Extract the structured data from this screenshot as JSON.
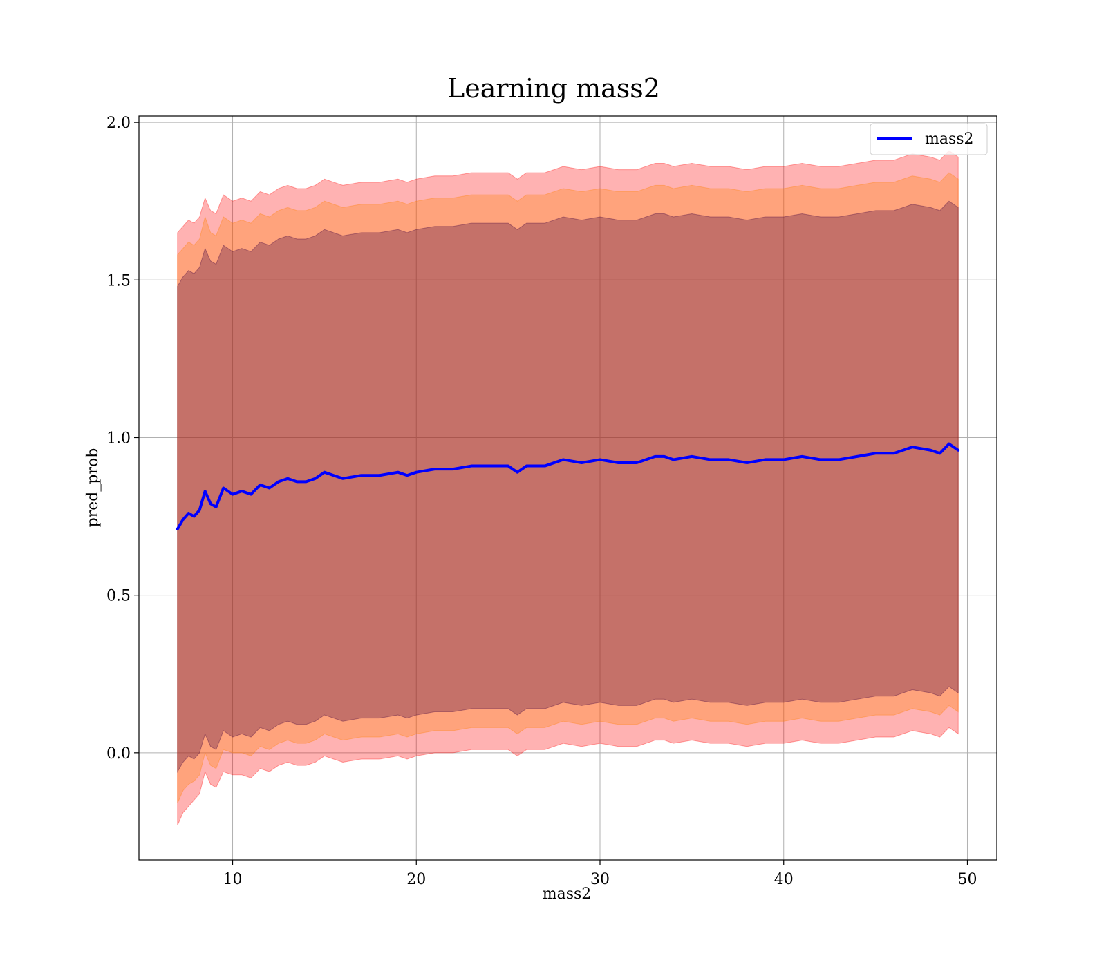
{
  "chart_data": {
    "type": "line",
    "title": "Learning mass2",
    "xlabel": "mass2",
    "ylabel": "pred_prob",
    "xlim": [
      4.9,
      51.6
    ],
    "ylim": [
      -0.34,
      2.02
    ],
    "x_ticks": [
      10,
      20,
      30,
      40,
      50
    ],
    "y_ticks": [
      0.0,
      0.5,
      1.0,
      1.5,
      2.0
    ],
    "x_tick_labels": [
      "10",
      "20",
      "30",
      "40",
      "50"
    ],
    "y_tick_labels": [
      "0.0",
      "0.5",
      "1.0",
      "1.5",
      "2.0"
    ],
    "grid": true,
    "legend": {
      "position": "top-right",
      "entries": [
        "mass2"
      ]
    },
    "series": [
      {
        "name": "mass2",
        "color": "#0000ff",
        "x": [
          7.0,
          7.3,
          7.6,
          7.9,
          8.2,
          8.5,
          8.8,
          9.1,
          9.5,
          10.0,
          10.5,
          11.0,
          11.5,
          12.0,
          12.5,
          13.0,
          13.5,
          14.0,
          14.5,
          15.0,
          15.5,
          16.0,
          17.0,
          18.0,
          19.0,
          19.5,
          20.0,
          21.0,
          22.0,
          23.0,
          24.0,
          25.0,
          25.5,
          26.0,
          27.0,
          28.0,
          29.0,
          30.0,
          31.0,
          32.0,
          33.0,
          33.5,
          34.0,
          35.0,
          36.0,
          37.0,
          38.0,
          39.0,
          40.0,
          41.0,
          42.0,
          43.0,
          44.0,
          45.0,
          46.0,
          46.5,
          47.0,
          48.0,
          48.5,
          49.0,
          49.5
        ],
        "mean": [
          0.71,
          0.74,
          0.76,
          0.75,
          0.77,
          0.83,
          0.79,
          0.78,
          0.84,
          0.82,
          0.83,
          0.82,
          0.85,
          0.84,
          0.86,
          0.87,
          0.86,
          0.86,
          0.87,
          0.89,
          0.88,
          0.87,
          0.88,
          0.88,
          0.89,
          0.88,
          0.89,
          0.9,
          0.9,
          0.91,
          0.91,
          0.91,
          0.89,
          0.91,
          0.91,
          0.93,
          0.92,
          0.93,
          0.92,
          0.92,
          0.94,
          0.94,
          0.93,
          0.94,
          0.93,
          0.93,
          0.92,
          0.93,
          0.93,
          0.94,
          0.93,
          0.93,
          0.94,
          0.95,
          0.95,
          0.96,
          0.97,
          0.96,
          0.95,
          0.98,
          0.96
        ],
        "bands": [
          {
            "color": "#ff0000",
            "opacity": 0.3,
            "lower": [
              -0.23,
              -0.19,
              -0.17,
              -0.15,
              -0.13,
              -0.06,
              -0.1,
              -0.11,
              -0.06,
              -0.07,
              -0.07,
              -0.08,
              -0.05,
              -0.06,
              -0.04,
              -0.03,
              -0.04,
              -0.04,
              -0.03,
              -0.01,
              -0.02,
              -0.03,
              -0.02,
              -0.02,
              -0.01,
              -0.02,
              -0.01,
              0.0,
              0.0,
              0.01,
              0.01,
              0.01,
              -0.01,
              0.01,
              0.01,
              0.03,
              0.02,
              0.03,
              0.02,
              0.02,
              0.04,
              0.04,
              0.03,
              0.04,
              0.03,
              0.03,
              0.02,
              0.03,
              0.03,
              0.04,
              0.03,
              0.03,
              0.04,
              0.05,
              0.05,
              0.06,
              0.07,
              0.06,
              0.05,
              0.08,
              0.06
            ],
            "upper": [
              1.65,
              1.67,
              1.69,
              1.68,
              1.7,
              1.76,
              1.72,
              1.71,
              1.77,
              1.75,
              1.76,
              1.75,
              1.78,
              1.77,
              1.79,
              1.8,
              1.79,
              1.79,
              1.8,
              1.82,
              1.81,
              1.8,
              1.81,
              1.81,
              1.82,
              1.81,
              1.82,
              1.83,
              1.83,
              1.84,
              1.84,
              1.84,
              1.82,
              1.84,
              1.84,
              1.86,
              1.85,
              1.86,
              1.85,
              1.85,
              1.87,
              1.87,
              1.86,
              1.87,
              1.86,
              1.86,
              1.85,
              1.86,
              1.86,
              1.87,
              1.86,
              1.86,
              1.87,
              1.88,
              1.88,
              1.89,
              1.9,
              1.89,
              1.88,
              1.91,
              1.89
            ]
          },
          {
            "color": "#ff8000",
            "opacity": 0.3,
            "lower": [
              -0.16,
              -0.12,
              -0.1,
              -0.09,
              -0.07,
              0.0,
              -0.04,
              -0.05,
              0.01,
              0.0,
              0.0,
              -0.01,
              0.02,
              0.01,
              0.03,
              0.04,
              0.03,
              0.03,
              0.04,
              0.06,
              0.05,
              0.04,
              0.05,
              0.05,
              0.06,
              0.05,
              0.06,
              0.07,
              0.07,
              0.08,
              0.08,
              0.08,
              0.06,
              0.08,
              0.08,
              0.1,
              0.09,
              0.1,
              0.09,
              0.09,
              0.11,
              0.11,
              0.1,
              0.11,
              0.1,
              0.1,
              0.09,
              0.1,
              0.1,
              0.11,
              0.1,
              0.1,
              0.11,
              0.12,
              0.12,
              0.13,
              0.14,
              0.13,
              0.12,
              0.15,
              0.13
            ],
            "upper": [
              1.58,
              1.6,
              1.62,
              1.61,
              1.63,
              1.7,
              1.65,
              1.64,
              1.7,
              1.68,
              1.69,
              1.68,
              1.71,
              1.7,
              1.72,
              1.73,
              1.72,
              1.72,
              1.73,
              1.75,
              1.74,
              1.73,
              1.74,
              1.74,
              1.75,
              1.74,
              1.75,
              1.76,
              1.76,
              1.77,
              1.77,
              1.77,
              1.75,
              1.77,
              1.77,
              1.79,
              1.78,
              1.79,
              1.78,
              1.78,
              1.8,
              1.8,
              1.79,
              1.8,
              1.79,
              1.79,
              1.78,
              1.79,
              1.79,
              1.8,
              1.79,
              1.79,
              1.8,
              1.81,
              1.81,
              1.82,
              1.83,
              1.82,
              1.81,
              1.84,
              1.82
            ]
          },
          {
            "color": "#400040",
            "opacity": 0.3,
            "lower": [
              -0.06,
              -0.03,
              -0.01,
              -0.02,
              0.0,
              0.06,
              0.02,
              0.01,
              0.07,
              0.05,
              0.06,
              0.05,
              0.08,
              0.07,
              0.09,
              0.1,
              0.09,
              0.09,
              0.1,
              0.12,
              0.11,
              0.1,
              0.11,
              0.11,
              0.12,
              0.11,
              0.12,
              0.13,
              0.13,
              0.14,
              0.14,
              0.14,
              0.12,
              0.14,
              0.14,
              0.16,
              0.15,
              0.16,
              0.15,
              0.15,
              0.17,
              0.17,
              0.16,
              0.17,
              0.16,
              0.16,
              0.15,
              0.16,
              0.16,
              0.17,
              0.16,
              0.16,
              0.17,
              0.18,
              0.18,
              0.19,
              0.2,
              0.19,
              0.18,
              0.21,
              0.19
            ],
            "upper": [
              1.48,
              1.51,
              1.53,
              1.52,
              1.54,
              1.6,
              1.56,
              1.55,
              1.61,
              1.59,
              1.6,
              1.59,
              1.62,
              1.61,
              1.63,
              1.64,
              1.63,
              1.63,
              1.64,
              1.66,
              1.65,
              1.64,
              1.65,
              1.65,
              1.66,
              1.65,
              1.66,
              1.67,
              1.67,
              1.68,
              1.68,
              1.68,
              1.66,
              1.68,
              1.68,
              1.7,
              1.69,
              1.7,
              1.69,
              1.69,
              1.71,
              1.71,
              1.7,
              1.71,
              1.7,
              1.7,
              1.69,
              1.7,
              1.7,
              1.71,
              1.7,
              1.7,
              1.71,
              1.72,
              1.72,
              1.73,
              1.74,
              1.73,
              1.72,
              1.75,
              1.73
            ]
          }
        ]
      }
    ]
  }
}
